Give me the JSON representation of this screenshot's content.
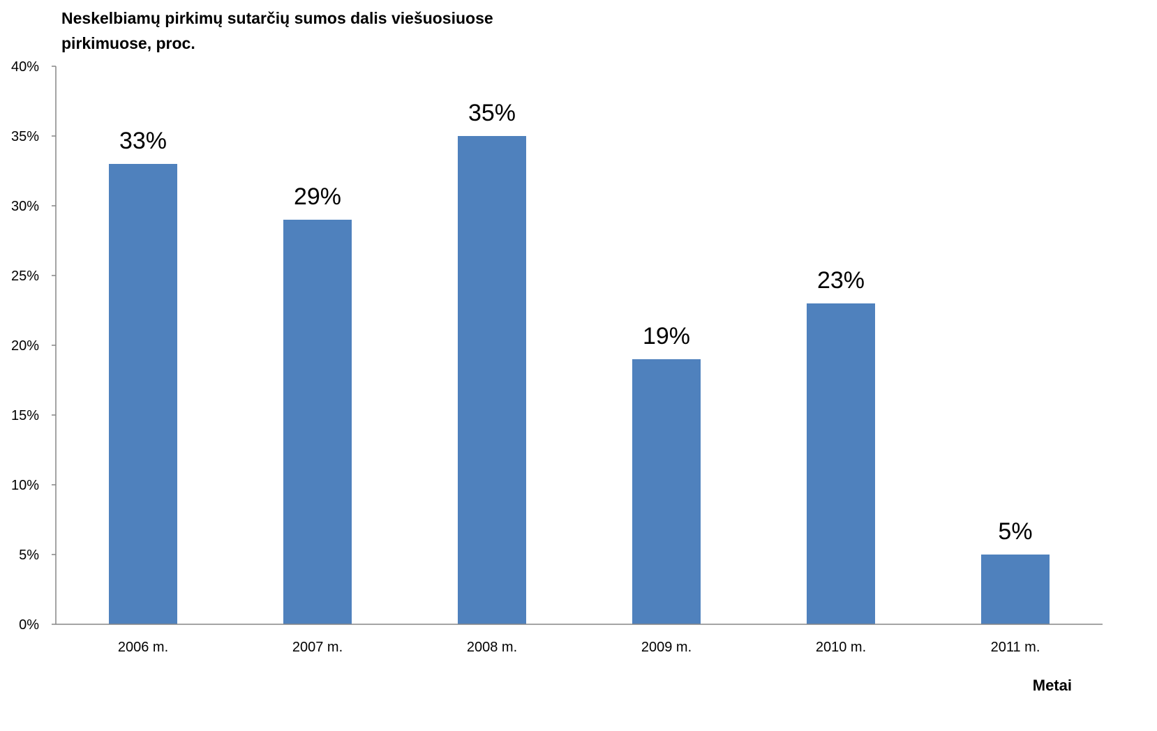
{
  "chart_data": {
    "type": "bar",
    "title": "Neskelbiamų pirkimų sutarčių sumos dalis viešuosiuose pirkimuose, proc.",
    "xlabel": "Metai",
    "ylabel": "",
    "categories": [
      "2006 m.",
      "2007 m.",
      "2008 m.",
      "2009 m.",
      "2010 m.",
      "2011 m."
    ],
    "values": [
      33,
      29,
      35,
      19,
      23,
      5
    ],
    "data_labels": [
      "33%",
      "29%",
      "35%",
      "19%",
      "23%",
      "5%"
    ],
    "ylim": [
      0,
      40
    ],
    "yticks": [
      0,
      5,
      10,
      15,
      20,
      25,
      30,
      35,
      40
    ],
    "ytick_labels": [
      "0%",
      "5%",
      "10%",
      "15%",
      "20%",
      "25%",
      "30%",
      "35%",
      "40%"
    ],
    "grid": false,
    "legend": "none",
    "bar_color": "#4f81bd",
    "axis_color": "#868686"
  }
}
